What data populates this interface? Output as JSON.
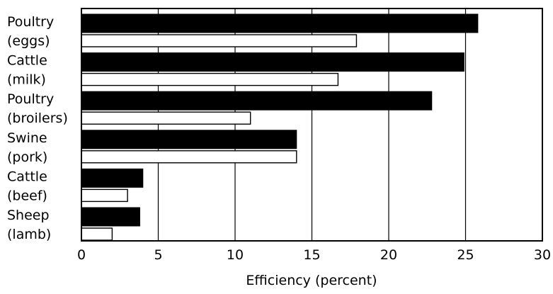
{
  "chart_data": {
    "type": "bar",
    "orientation": "horizontal",
    "title": "",
    "xlabel": "Efficiency (percent)",
    "ylabel": "",
    "xlim": [
      0,
      30
    ],
    "xticks": [
      "0",
      "5",
      "10",
      "15",
      "20",
      "25",
      "30"
    ],
    "grid": true,
    "legend": "none",
    "categories": [
      [
        "Poultry",
        "(eggs)"
      ],
      [
        "Cattle",
        "(milk)"
      ],
      [
        "Poultry",
        "(broilers)"
      ],
      [
        "Swine",
        "(pork)"
      ],
      [
        "Cattle",
        "(beef)"
      ],
      [
        "Sheep",
        "(lamb)"
      ]
    ],
    "series": [
      {
        "values": [
          25.8,
          24.9,
          22.8,
          14.0,
          4.0,
          3.8
        ],
        "color": "#000000"
      },
      {
        "values": [
          17.9,
          16.7,
          11.0,
          14.0,
          3.0,
          2.0
        ],
        "color": "#ffffff"
      }
    ]
  }
}
